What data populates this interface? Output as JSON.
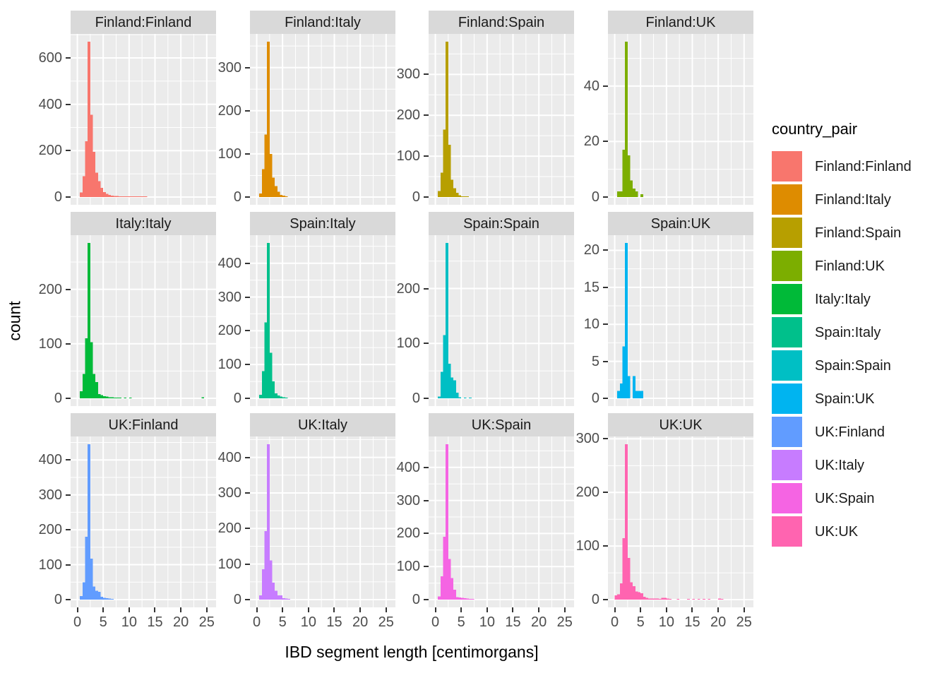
{
  "figure": {
    "xlabel": "IBD segment length [centimorgans]",
    "ylabel": "count"
  },
  "colors": {
    "panel_background": "#EBEBEB",
    "strip_background": "#D9D9D9",
    "gridline": "#FFFFFF",
    "tick_text": "#4D4D4D",
    "axis_title_text": "#000000",
    "tick_mark": "#333333"
  },
  "chart_data": {
    "type": "bar",
    "subtype": "faceted-histogram",
    "title": "",
    "xlabel": "IBD segment length [centimorgans]",
    "ylabel": "count",
    "bin_width": 0.5,
    "x_ticks": [
      0,
      5,
      10,
      15,
      20,
      25
    ],
    "x_minor_ticks": [
      2.5,
      7.5,
      12.5,
      17.5,
      22.5
    ],
    "xlim": [
      -1.3,
      26.8
    ],
    "grid": "on",
    "legend_position": "right",
    "facets": [
      {
        "label": "Finland:Finland",
        "color": "#F8766D",
        "y_ticks": [
          0,
          200,
          400,
          600
        ],
        "bars": [
          [
            0.5,
            20
          ],
          [
            1,
            90
          ],
          [
            1.5,
            240
          ],
          [
            2,
            670
          ],
          [
            2.5,
            355
          ],
          [
            3,
            195
          ],
          [
            3.5,
            105
          ],
          [
            4,
            68
          ],
          [
            4.5,
            40
          ],
          [
            5,
            22
          ],
          [
            5.5,
            14
          ],
          [
            6,
            9
          ],
          [
            6.5,
            6
          ],
          [
            7,
            5
          ],
          [
            7.5,
            4
          ],
          [
            8,
            3
          ],
          [
            8.5,
            3
          ],
          [
            9,
            2
          ],
          [
            9.5,
            2
          ],
          [
            10,
            2
          ],
          [
            10.5,
            2
          ],
          [
            11,
            1
          ],
          [
            11.5,
            1
          ],
          [
            12,
            1
          ],
          [
            12.5,
            1
          ],
          [
            13,
            1
          ]
        ]
      },
      {
        "label": "Finland:Italy",
        "color": "#DE8C00",
        "y_ticks": [
          0,
          100,
          200,
          300
        ],
        "bars": [
          [
            0.5,
            8
          ],
          [
            1,
            65
          ],
          [
            1.5,
            145
          ],
          [
            2,
            360
          ],
          [
            2.5,
            100
          ],
          [
            3,
            45
          ],
          [
            3.5,
            25
          ],
          [
            4,
            12
          ],
          [
            4.5,
            5
          ],
          [
            5,
            3
          ],
          [
            5.5,
            2
          ]
        ]
      },
      {
        "label": "Finland:Spain",
        "color": "#B79F00",
        "y_ticks": [
          0,
          100,
          200,
          300
        ],
        "bars": [
          [
            0.5,
            15
          ],
          [
            1,
            60
          ],
          [
            1.5,
            165
          ],
          [
            2,
            380
          ],
          [
            2.5,
            128
          ],
          [
            3,
            42
          ],
          [
            3.5,
            22
          ],
          [
            4,
            10
          ],
          [
            4.5,
            4
          ],
          [
            5,
            2
          ],
          [
            5.5,
            2
          ],
          [
            6,
            1
          ]
        ]
      },
      {
        "label": "Finland:UK",
        "color": "#7CAE00",
        "y_ticks": [
          0,
          20,
          40
        ],
        "bars": [
          [
            0.5,
            2
          ],
          [
            1,
            2
          ],
          [
            1.5,
            17
          ],
          [
            2,
            56
          ],
          [
            2.5,
            15
          ],
          [
            3,
            6
          ],
          [
            3.5,
            3
          ],
          [
            4,
            2
          ],
          [
            5,
            1
          ]
        ]
      },
      {
        "label": "Italy:Italy",
        "color": "#00BA38",
        "y_ticks": [
          0,
          100,
          200
        ],
        "bars": [
          [
            0.5,
            13
          ],
          [
            1,
            45
          ],
          [
            1.5,
            110
          ],
          [
            2,
            285
          ],
          [
            2.5,
            103
          ],
          [
            3,
            45
          ],
          [
            3.5,
            30
          ],
          [
            4,
            8
          ],
          [
            4.5,
            6
          ],
          [
            5,
            4
          ],
          [
            5.5,
            3
          ],
          [
            6,
            2
          ],
          [
            6.5,
            2
          ],
          [
            7,
            1
          ],
          [
            7.5,
            1
          ],
          [
            8,
            1
          ],
          [
            9,
            1
          ],
          [
            10,
            1
          ],
          [
            24,
            2
          ]
        ]
      },
      {
        "label": "Spain:Italy",
        "color": "#00C08B",
        "y_ticks": [
          0,
          100,
          200,
          300,
          400
        ],
        "bars": [
          [
            0.5,
            10
          ],
          [
            1,
            80
          ],
          [
            1.5,
            225
          ],
          [
            2,
            460
          ],
          [
            2.5,
            135
          ],
          [
            3,
            50
          ],
          [
            3.5,
            15
          ],
          [
            4,
            8
          ],
          [
            4.5,
            5
          ],
          [
            5,
            3
          ],
          [
            5.5,
            2
          ]
        ]
      },
      {
        "label": "Spain:Spain",
        "color": "#00BFC4",
        "y_ticks": [
          0,
          100,
          200
        ],
        "bars": [
          [
            0.5,
            3
          ],
          [
            1,
            48
          ],
          [
            1.5,
            115
          ],
          [
            2,
            283
          ],
          [
            2.5,
            63
          ],
          [
            3,
            38
          ],
          [
            3.5,
            33
          ],
          [
            4,
            10
          ],
          [
            4.5,
            2
          ],
          [
            5.5,
            1
          ],
          [
            6.5,
            1
          ]
        ]
      },
      {
        "label": "Spain:UK",
        "color": "#00B4F0",
        "y_ticks": [
          0,
          5,
          10,
          15,
          20
        ],
        "bars": [
          [
            0.5,
            1
          ],
          [
            1,
            2
          ],
          [
            1.5,
            7
          ],
          [
            2,
            21
          ],
          [
            2.5,
            3
          ],
          [
            3.5,
            3
          ],
          [
            4,
            1
          ],
          [
            4.5,
            1
          ],
          [
            5,
            1
          ]
        ]
      },
      {
        "label": "UK:Finland",
        "color": "#619CFF",
        "y_ticks": [
          0,
          100,
          200,
          300,
          400
        ],
        "bars": [
          [
            0.5,
            10
          ],
          [
            1,
            50
          ],
          [
            1.5,
            180
          ],
          [
            2,
            445
          ],
          [
            2.5,
            117
          ],
          [
            3,
            37
          ],
          [
            3.5,
            25
          ],
          [
            4,
            22
          ],
          [
            4.5,
            8
          ],
          [
            5,
            5
          ],
          [
            5.5,
            4
          ],
          [
            6,
            3
          ],
          [
            6.5,
            2
          ]
        ]
      },
      {
        "label": "UK:Italy",
        "color": "#C77CFF",
        "y_ticks": [
          0,
          100,
          200,
          300,
          400
        ],
        "bars": [
          [
            0.5,
            12
          ],
          [
            1,
            85
          ],
          [
            1.5,
            193
          ],
          [
            2,
            437
          ],
          [
            2.5,
            110
          ],
          [
            3,
            48
          ],
          [
            3.5,
            25
          ],
          [
            4,
            12
          ],
          [
            4.5,
            12
          ],
          [
            5,
            4
          ],
          [
            5.5,
            3
          ],
          [
            6,
            2
          ]
        ]
      },
      {
        "label": "UK:Spain",
        "color": "#F564E3",
        "y_ticks": [
          0,
          100,
          200,
          300,
          400
        ],
        "bars": [
          [
            0.5,
            10
          ],
          [
            1,
            70
          ],
          [
            1.5,
            190
          ],
          [
            2,
            470
          ],
          [
            2.5,
            123
          ],
          [
            3,
            65
          ],
          [
            3.5,
            30
          ],
          [
            4,
            8
          ],
          [
            4.5,
            6
          ],
          [
            5,
            5
          ],
          [
            5.5,
            4
          ],
          [
            6,
            3
          ],
          [
            6.5,
            2
          ],
          [
            7,
            2
          ]
        ]
      },
      {
        "label": "UK:UK",
        "color": "#FF64B0",
        "y_ticks": [
          0,
          100,
          200,
          300
        ],
        "bars": [
          [
            0,
            8
          ],
          [
            0.5,
            10
          ],
          [
            1,
            30
          ],
          [
            1.5,
            115
          ],
          [
            2,
            290
          ],
          [
            2.5,
            78
          ],
          [
            3,
            32
          ],
          [
            3.5,
            25
          ],
          [
            4,
            15
          ],
          [
            4.5,
            14
          ],
          [
            5,
            12
          ],
          [
            5.5,
            5
          ],
          [
            6,
            3
          ],
          [
            6.5,
            2
          ],
          [
            7,
            2
          ],
          [
            7.5,
            2
          ],
          [
            8,
            2
          ],
          [
            8.5,
            1
          ],
          [
            9,
            3
          ],
          [
            9.5,
            3
          ],
          [
            10,
            2
          ],
          [
            10.5,
            1
          ],
          [
            12,
            1
          ],
          [
            14,
            1
          ],
          [
            15,
            1
          ],
          [
            16,
            1
          ],
          [
            17,
            1
          ],
          [
            18,
            1
          ],
          [
            20,
            2
          ],
          [
            20.5,
            1
          ]
        ]
      }
    ],
    "legend": {
      "title": "country_pair",
      "entries": [
        {
          "label": "Finland:Finland",
          "color": "#F8766D"
        },
        {
          "label": "Finland:Italy",
          "color": "#DE8C00"
        },
        {
          "label": "Finland:Spain",
          "color": "#B79F00"
        },
        {
          "label": "Finland:UK",
          "color": "#7CAE00"
        },
        {
          "label": "Italy:Italy",
          "color": "#00BA38"
        },
        {
          "label": "Spain:Italy",
          "color": "#00C08B"
        },
        {
          "label": "Spain:Spain",
          "color": "#00BFC4"
        },
        {
          "label": "Spain:UK",
          "color": "#00B4F0"
        },
        {
          "label": "UK:Finland",
          "color": "#619CFF"
        },
        {
          "label": "UK:Italy",
          "color": "#C77CFF"
        },
        {
          "label": "UK:Spain",
          "color": "#F564E3"
        },
        {
          "label": "UK:UK",
          "color": "#FF64B0"
        }
      ]
    }
  }
}
